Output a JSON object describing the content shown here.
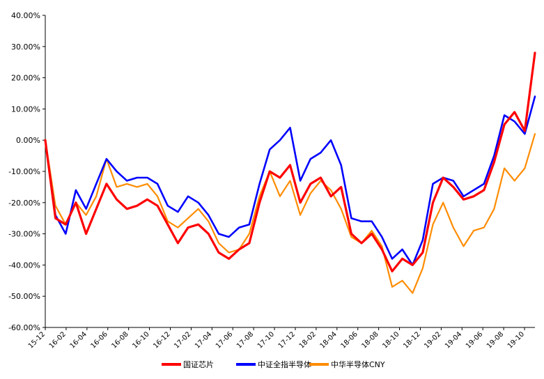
{
  "chart_data": {
    "type": "line",
    "title": "",
    "xlabel": "",
    "ylabel": "",
    "ylim": [
      -60,
      40
    ],
    "yticks": [
      40,
      30,
      20,
      10,
      0,
      -10,
      -20,
      -30,
      -40,
      -50,
      -60
    ],
    "ytick_labels": [
      "40.00%",
      "30.00%",
      "20.00%",
      "10.00%",
      "0.00%",
      "-10.00%",
      "-20.00%",
      "-30.00%",
      "-40.00%",
      "-50.00%",
      "-60.00%"
    ],
    "xtick_labels": [
      "15-12",
      "16-02",
      "16-04",
      "16-06",
      "16-08",
      "16-10",
      "16-12",
      "17-02",
      "17-04",
      "17-06",
      "17-08",
      "17-10",
      "17-12",
      "18-02",
      "18-04",
      "18-06",
      "18-08",
      "18-10",
      "18-12",
      "19-02",
      "19-04",
      "19-06",
      "19-08",
      "19-10"
    ],
    "x": [
      "15-12",
      "16-01",
      "16-02",
      "16-03",
      "16-04",
      "16-05",
      "16-06",
      "16-07",
      "16-08",
      "16-09",
      "16-10",
      "16-11",
      "16-12",
      "17-01",
      "17-02",
      "17-03",
      "17-04",
      "17-05",
      "17-06",
      "17-07",
      "17-08",
      "17-09",
      "17-10",
      "17-11",
      "17-12",
      "18-01",
      "18-02",
      "18-03",
      "18-04",
      "18-05",
      "18-06",
      "18-07",
      "18-08",
      "18-09",
      "18-10",
      "18-11",
      "18-12",
      "19-01",
      "19-02",
      "19-03",
      "19-04",
      "19-05",
      "19-06",
      "19-07",
      "19-08",
      "19-09",
      "19-10",
      "19-11",
      "19-12"
    ],
    "legend_position": "bottom",
    "grid": false,
    "series": [
      {
        "name": "国证芯片",
        "color": "#ff0000",
        "values": [
          0,
          -25,
          -27,
          -20,
          -30,
          -22,
          -14,
          -19,
          -22,
          -21,
          -19,
          -21,
          -27,
          -33,
          -28,
          -27,
          -30,
          -36,
          -38,
          -35,
          -33,
          -20,
          -10,
          -12,
          -8,
          -20,
          -14,
          -12,
          -18,
          -15,
          -30,
          -33,
          -30,
          -35,
          -42,
          -38,
          -40,
          -36,
          -20,
          -12,
          -15,
          -19,
          -18,
          -16,
          -7,
          5,
          9,
          3,
          28
        ]
      },
      {
        "name": "中证全指半导体",
        "color": "#0000ff",
        "values": [
          0,
          -24,
          -30,
          -16,
          -22,
          -14,
          -6,
          -10,
          -13,
          -12,
          -12,
          -14,
          -21,
          -23,
          -18,
          -20,
          -24,
          -30,
          -31,
          -28,
          -27,
          -14,
          -3,
          0,
          4,
          -13,
          -6,
          -4,
          0,
          -8,
          -25,
          -26,
          -26,
          -31,
          -38,
          -35,
          -40,
          -32,
          -14,
          -12,
          -13,
          -18,
          -16,
          -14,
          -5,
          8,
          6,
          2,
          14
        ]
      },
      {
        "name": "中华半导体CNY",
        "color": "#ff8c00",
        "values": [
          0,
          -21,
          -27,
          -20,
          -24,
          -18,
          -6,
          -15,
          -14,
          -15,
          -14,
          -18,
          -26,
          -28,
          -25,
          -22,
          -26,
          -33,
          -36,
          -35,
          -30,
          -18,
          -10,
          -18,
          -13,
          -24,
          -17,
          -13,
          -16,
          -22,
          -31,
          -33,
          -29,
          -34,
          -47,
          -45,
          -49,
          -41,
          -27,
          -20,
          -28,
          -34,
          -29,
          -28,
          -22,
          -9,
          -13,
          -9,
          2
        ]
      }
    ]
  }
}
